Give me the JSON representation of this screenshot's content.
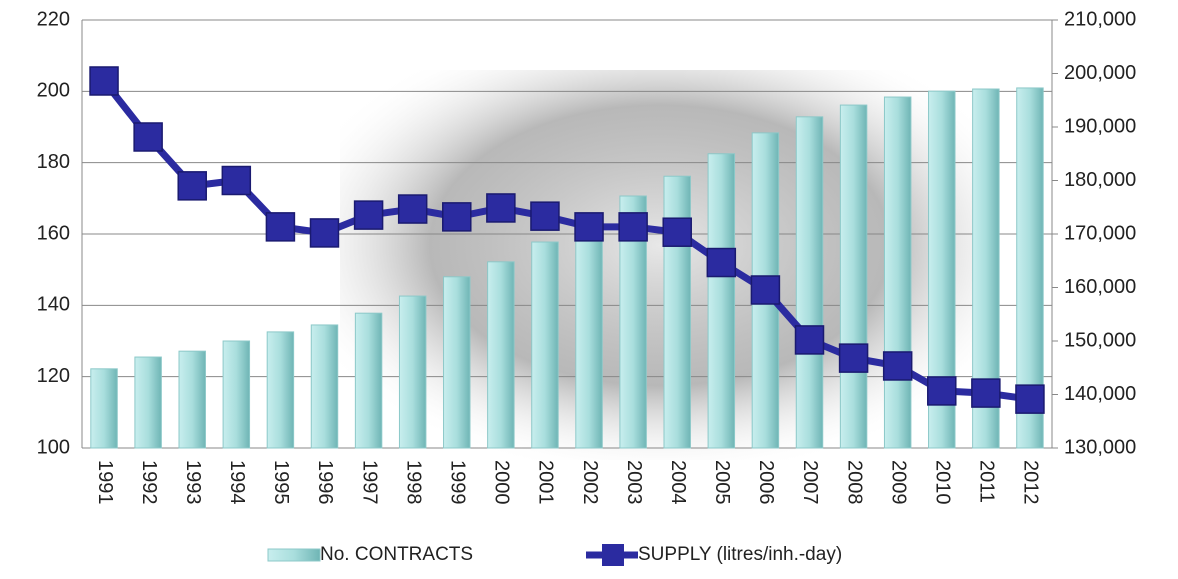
{
  "chart_data": {
    "type": "bar-line",
    "categories": [
      "1991",
      "1992",
      "1993",
      "1994",
      "1995",
      "1996",
      "1997",
      "1998",
      "1999",
      "2000",
      "2001",
      "2002",
      "2003",
      "2004",
      "2005",
      "2006",
      "2007",
      "2008",
      "2009",
      "2010",
      "2011",
      "2012"
    ],
    "series": [
      {
        "name": "No. CONTRACTS",
        "type": "bar",
        "axis": "y2",
        "color": "#a9dedd",
        "values": [
          144800,
          147000,
          148100,
          150000,
          151700,
          153000,
          155200,
          158400,
          162000,
          164800,
          168500,
          173200,
          177100,
          180800,
          185000,
          188900,
          191900,
          194100,
          195600,
          196700,
          197100,
          197300
        ]
      },
      {
        "name": "SUPPLY (litres/inh.-day)",
        "type": "line",
        "axis": "y",
        "color": "#2b2ba0",
        "values": [
          202.9,
          187.2,
          173.5,
          175,
          162,
          160.3,
          165.3,
          167,
          164.8,
          167.3,
          165,
          162,
          162,
          160.5,
          152,
          144.3,
          130.3,
          125.2,
          123,
          116,
          115.4,
          113.7
        ]
      }
    ],
    "ylim": [
      100,
      220
    ],
    "yticks": [
      100,
      120,
      140,
      160,
      180,
      200,
      220
    ],
    "y2lim": [
      130000,
      210000
    ],
    "y2ticks": [
      {
        "value": 130000,
        "label": "130,000"
      },
      {
        "value": 140000,
        "label": "140,000"
      },
      {
        "value": 150000,
        "label": "150,000"
      },
      {
        "value": 160000,
        "label": "160,000"
      },
      {
        "value": 170000,
        "label": "170,000"
      },
      {
        "value": 180000,
        "label": "180,000"
      },
      {
        "value": 190000,
        "label": "190,000"
      },
      {
        "value": 200000,
        "label": "200,000"
      },
      {
        "value": 210000,
        "label": "210,000"
      }
    ],
    "grid": true,
    "legend": "bottom"
  }
}
